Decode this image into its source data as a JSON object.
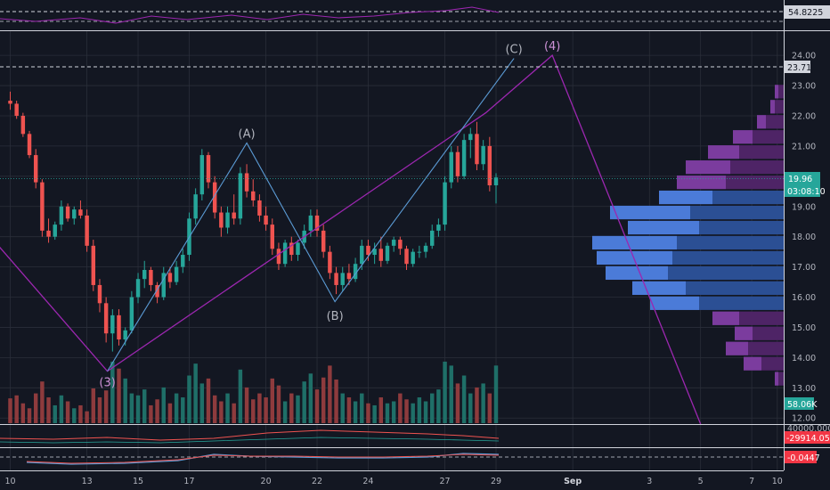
{
  "chart_data": {
    "type": "candlestick",
    "x_ticks": [
      "10",
      "13",
      "15",
      "17",
      "20",
      "22",
      "24",
      "27",
      "29",
      "Sep",
      "3",
      "5",
      "7",
      "10"
    ],
    "price_axis": {
      "ylim": [
        11.8,
        24.8
      ],
      "ticks": [
        "12.00",
        "13.00",
        "14.00",
        "15.00",
        "16.00",
        "17.00",
        "18.00",
        "19.00",
        "20.00",
        "21.00",
        "22.00",
        "23.00",
        "24.00"
      ]
    },
    "last_price": {
      "value": "19.96",
      "countdown": "03:08:10"
    },
    "horizontal_line_level": "23.71",
    "wave_labels": [
      {
        "text": "(3)",
        "day": 13.8,
        "price": 13.55
      },
      {
        "text": "(A)",
        "day": 19.25,
        "price": 21.1
      },
      {
        "text": "(B)",
        "day": 22.7,
        "price": 15.75
      },
      {
        "text": "(C)",
        "day": 29.7,
        "price": 23.9
      },
      {
        "text": "(4)",
        "day": 31.2,
        "price": 24.0
      }
    ],
    "purple_path": [
      [
        8.0,
        19.2
      ],
      [
        13.8,
        13.55
      ],
      [
        28.6,
        22.1
      ],
      [
        31.2,
        24.0
      ],
      [
        37.0,
        11.8
      ]
    ],
    "blue_path": [
      [
        13.8,
        13.55
      ],
      [
        19.25,
        21.1
      ],
      [
        22.7,
        15.85
      ],
      [
        29.7,
        23.9
      ]
    ],
    "candles": [
      [
        10.0,
        22.5,
        22.8,
        22.2,
        22.4
      ],
      [
        10.25,
        22.4,
        22.5,
        21.9,
        22.0
      ],
      [
        10.5,
        22.0,
        22.1,
        21.3,
        21.4
      ],
      [
        10.75,
        21.4,
        21.5,
        20.6,
        20.7
      ],
      [
        11.0,
        20.7,
        20.9,
        19.6,
        19.8
      ],
      [
        11.25,
        19.8,
        19.9,
        18.0,
        18.2
      ],
      [
        11.5,
        18.2,
        18.6,
        17.8,
        18.0
      ],
      [
        11.75,
        18.0,
        18.5,
        17.9,
        18.4
      ],
      [
        12.0,
        18.4,
        19.2,
        18.2,
        19.0
      ],
      [
        12.25,
        19.0,
        19.1,
        18.5,
        18.6
      ],
      [
        12.5,
        18.6,
        19.0,
        18.4,
        18.9
      ],
      [
        12.75,
        18.9,
        19.2,
        18.6,
        18.7
      ],
      [
        13.0,
        18.7,
        18.9,
        17.5,
        17.7
      ],
      [
        13.25,
        17.7,
        17.9,
        16.2,
        16.4
      ],
      [
        13.5,
        16.4,
        16.6,
        15.5,
        15.8
      ],
      [
        13.75,
        15.8,
        16.0,
        14.5,
        14.8
      ],
      [
        14.0,
        14.8,
        15.6,
        14.2,
        15.4
      ],
      [
        14.25,
        15.4,
        15.6,
        14.4,
        14.6
      ],
      [
        14.5,
        14.6,
        15.0,
        14.4,
        14.9
      ],
      [
        14.75,
        14.9,
        16.2,
        14.8,
        16.0
      ],
      [
        15.0,
        16.0,
        16.8,
        15.8,
        16.6
      ],
      [
        15.25,
        16.6,
        17.2,
        16.3,
        16.9
      ],
      [
        15.5,
        16.9,
        17.0,
        16.2,
        16.4
      ],
      [
        15.75,
        16.4,
        16.5,
        15.8,
        16.0
      ],
      [
        16.0,
        16.0,
        17.0,
        15.9,
        16.8
      ],
      [
        16.25,
        16.8,
        17.0,
        16.3,
        16.5
      ],
      [
        16.5,
        16.5,
        17.2,
        16.4,
        17.0
      ],
      [
        16.75,
        17.0,
        17.6,
        16.8,
        17.4
      ],
      [
        17.0,
        17.4,
        18.8,
        17.2,
        18.6
      ],
      [
        17.25,
        18.6,
        19.6,
        18.4,
        19.4
      ],
      [
        17.5,
        19.4,
        20.9,
        19.2,
        20.7
      ],
      [
        17.75,
        20.7,
        20.8,
        19.6,
        19.8
      ],
      [
        18.0,
        19.8,
        20.0,
        18.6,
        18.8
      ],
      [
        18.25,
        18.8,
        19.0,
        18.0,
        18.3
      ],
      [
        18.5,
        18.3,
        19.0,
        18.1,
        18.8
      ],
      [
        18.75,
        18.8,
        19.4,
        18.4,
        18.6
      ],
      [
        19.0,
        18.6,
        20.3,
        18.4,
        20.1
      ],
      [
        19.25,
        20.1,
        20.4,
        19.3,
        19.5
      ],
      [
        19.5,
        19.5,
        19.9,
        19.0,
        19.2
      ],
      [
        19.75,
        19.2,
        19.4,
        18.5,
        18.7
      ],
      [
        20.0,
        18.7,
        19.0,
        18.2,
        18.4
      ],
      [
        20.25,
        18.4,
        18.6,
        17.4,
        17.6
      ],
      [
        20.5,
        17.6,
        17.8,
        16.9,
        17.1
      ],
      [
        20.75,
        17.1,
        17.9,
        17.0,
        17.8
      ],
      [
        21.0,
        17.8,
        18.0,
        17.2,
        17.4
      ],
      [
        21.25,
        17.4,
        17.9,
        17.2,
        17.8
      ],
      [
        21.5,
        17.8,
        18.4,
        17.6,
        18.2
      ],
      [
        21.75,
        18.2,
        18.9,
        18.0,
        18.7
      ],
      [
        22.0,
        18.7,
        18.9,
        18.0,
        18.2
      ],
      [
        22.25,
        18.2,
        18.4,
        17.3,
        17.5
      ],
      [
        22.5,
        17.5,
        17.7,
        16.6,
        16.8
      ],
      [
        22.75,
        16.8,
        17.0,
        16.1,
        16.4
      ],
      [
        23.0,
        16.4,
        17.0,
        16.2,
        16.8
      ],
      [
        23.25,
        16.8,
        17.1,
        16.4,
        16.6
      ],
      [
        23.5,
        16.6,
        17.3,
        16.5,
        17.1
      ],
      [
        23.75,
        17.1,
        17.9,
        16.9,
        17.7
      ],
      [
        24.0,
        17.7,
        17.9,
        17.2,
        17.4
      ],
      [
        24.25,
        17.4,
        17.8,
        17.1,
        17.6
      ],
      [
        24.5,
        17.6,
        18.0,
        17.0,
        17.2
      ],
      [
        24.75,
        17.2,
        17.8,
        17.1,
        17.7
      ],
      [
        25.0,
        17.7,
        18.0,
        17.5,
        17.9
      ],
      [
        25.25,
        17.9,
        18.0,
        17.4,
        17.6
      ],
      [
        25.5,
        17.6,
        17.7,
        16.9,
        17.1
      ],
      [
        25.75,
        17.1,
        17.6,
        17.0,
        17.5
      ],
      [
        26.0,
        17.5,
        17.7,
        17.3,
        17.5
      ],
      [
        26.25,
        17.5,
        17.8,
        17.3,
        17.7
      ],
      [
        26.5,
        17.7,
        18.4,
        17.6,
        18.2
      ],
      [
        26.75,
        18.2,
        18.6,
        18.0,
        18.4
      ],
      [
        27.0,
        18.4,
        20.0,
        18.2,
        19.8
      ],
      [
        27.25,
        19.8,
        21.0,
        19.6,
        20.8
      ],
      [
        27.5,
        20.8,
        21.0,
        19.8,
        20.0
      ],
      [
        27.75,
        20.0,
        21.4,
        19.9,
        21.2
      ],
      [
        28.0,
        21.2,
        21.6,
        20.6,
        21.4
      ],
      [
        28.25,
        21.4,
        21.8,
        20.2,
        20.4
      ],
      [
        28.5,
        20.4,
        21.2,
        20.2,
        21.0
      ],
      [
        28.75,
        21.0,
        21.3,
        19.5,
        19.7
      ],
      [
        29.0,
        19.7,
        20.1,
        19.1,
        19.96
      ]
    ],
    "volume": {
      "label": "58.06K",
      "max": 70000,
      "values": [
        25000,
        28000,
        20000,
        15000,
        30000,
        42000,
        26000,
        18000,
        28000,
        22000,
        15000,
        18000,
        12000,
        35000,
        26000,
        33000,
        62000,
        55000,
        45000,
        30000,
        28000,
        34000,
        18000,
        24000,
        36000,
        20000,
        30000,
        26000,
        48000,
        60000,
        40000,
        45000,
        28000,
        22000,
        30000,
        20000,
        54000,
        36000,
        24000,
        30000,
        26000,
        45000,
        38000,
        22000,
        30000,
        28000,
        42000,
        50000,
        34000,
        46000,
        58000,
        44000,
        30000,
        26000,
        22000,
        30000,
        20000,
        18000,
        26000,
        20000,
        22000,
        30000,
        24000,
        20000,
        26000,
        22000,
        30000,
        34000,
        62000,
        58000,
        40000,
        48000,
        30000,
        36000,
        40000,
        30000,
        58060
      ]
    },
    "indicator_1": {
      "level_label": "54.8225"
    },
    "indicator_2": {
      "scale_label": "40000.0000",
      "value": "-29914.0570"
    },
    "indicator_3": {
      "value": "-0.0447"
    },
    "volume_profile": {
      "rows": [
        {
          "price": 22.8,
          "up": 4,
          "down": 6
        },
        {
          "price": 22.3,
          "up": 5,
          "down": 10
        },
        {
          "price": 21.8,
          "up": 10,
          "down": 20
        },
        {
          "price": 21.3,
          "up": 22,
          "down": 35
        },
        {
          "price": 20.8,
          "up": 35,
          "down": 50
        },
        {
          "price": 20.3,
          "up": 50,
          "down": 60
        },
        {
          "price": 19.8,
          "up": 55,
          "down": 65
        },
        {
          "price": 19.3,
          "up": 60,
          "down": 80
        },
        {
          "price": 18.8,
          "up": 90,
          "down": 105
        },
        {
          "price": 18.3,
          "up": 80,
          "down": 95
        },
        {
          "price": 17.8,
          "up": 95,
          "down": 120
        },
        {
          "price": 17.3,
          "up": 85,
          "down": 125
        },
        {
          "price": 16.8,
          "up": 70,
          "down": 130
        },
        {
          "price": 16.3,
          "up": 60,
          "down": 110
        },
        {
          "price": 15.8,
          "up": 55,
          "down": 95
        },
        {
          "price": 15.3,
          "up": 30,
          "down": 50
        },
        {
          "price": 14.8,
          "up": 20,
          "down": 35
        },
        {
          "price": 14.3,
          "up": 25,
          "down": 40
        },
        {
          "price": 13.8,
          "up": 20,
          "down": 25
        },
        {
          "price": 13.3,
          "up": 4,
          "down": 6
        }
      ]
    },
    "colors": {
      "background": "#131722",
      "grid": "#2a2e39",
      "up": "#26a69a",
      "down": "#ef5350",
      "volume_up": "#1f6f68",
      "volume_down": "#8e3b3d",
      "purple": "#9c27b0",
      "blue": "#5b9bd5",
      "profile_up": "#4b7bd8",
      "profile_down": "#2b4f94",
      "profile_up_top": "#7b3c9e",
      "profile_down_top": "#4e2466",
      "last_price": "#26a69a",
      "level_label_bg": "#d1d4dc",
      "indicator_label_bg": "#f23645",
      "indicator_purple": "#7e57c2",
      "text": "#b2b5be"
    }
  }
}
